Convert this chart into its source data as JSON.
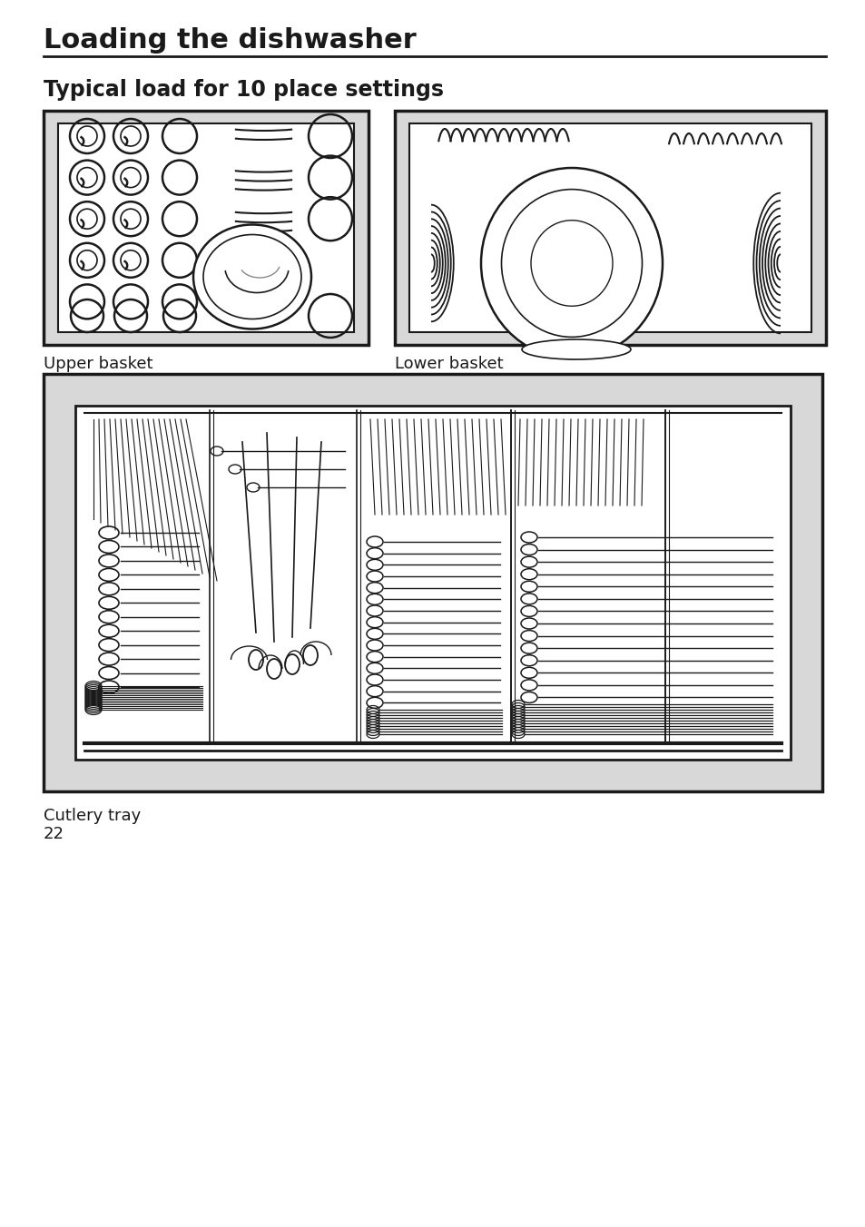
{
  "title": "Loading the dishwasher",
  "subtitle": "Typical load for 10 place settings",
  "label_upper": "Upper basket",
  "label_lower": "Lower basket",
  "label_cutlery": "Cutlery tray",
  "page_number": "22",
  "bg_color": "#ffffff",
  "diagram_bg": "#d8d8d8",
  "inner_bg": "#ffffff",
  "line_color": "#1a1a1a",
  "text_color": "#1a1a1a",
  "title_fontsize": 22,
  "subtitle_fontsize": 17,
  "label_fontsize": 13,
  "page_fontsize": 13
}
